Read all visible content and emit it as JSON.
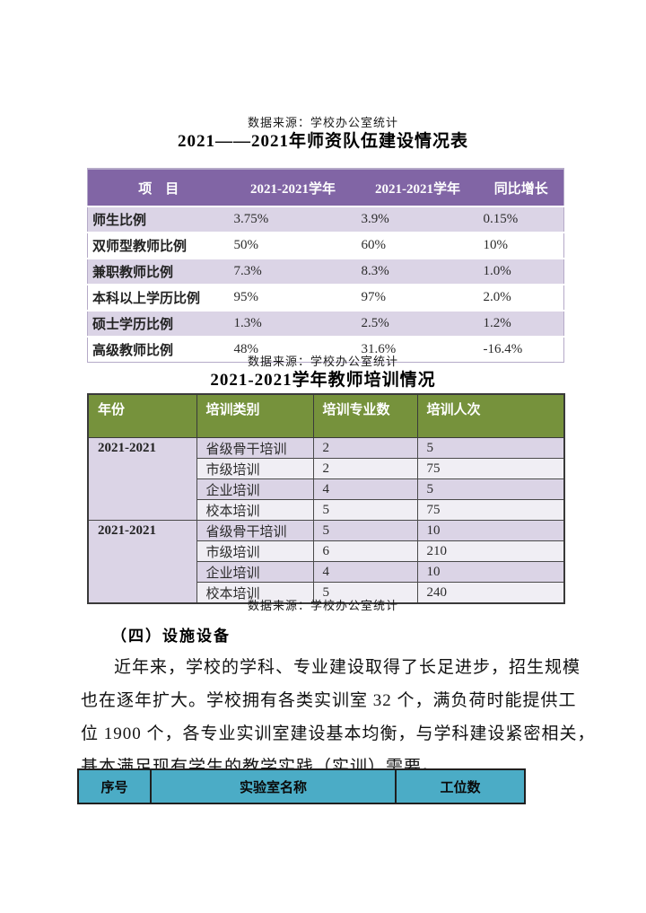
{
  "captions": {
    "source": "数据来源：学校办公室统计"
  },
  "colors": {
    "purple_header": "#8165a5",
    "lavender_row": "#dbd4e6",
    "lavender_row_light": "#f0eef4",
    "lavender_border": "#b5aac8",
    "green_header": "#76923c",
    "teal_header": "#4bacc6"
  },
  "section_staff": {
    "title": "2021——2021年师资队伍建设情况表",
    "table": {
      "headers": [
        "项　目",
        "2021-2021学年",
        "2021-2021学年",
        "同比增长"
      ],
      "rows": [
        [
          "师生比例",
          "3.75%",
          "3.9%",
          "0.15%"
        ],
        [
          "双师型教师比例",
          "50%",
          "60%",
          "10%"
        ],
        [
          "兼职教师比例",
          "7.3%",
          "8.3%",
          "1.0%"
        ],
        [
          "本科以上学历比例",
          "95%",
          "97%",
          "2.0%"
        ],
        [
          "硕士学历比例",
          "1.3%",
          "2.5%",
          "1.2%"
        ],
        [
          "高级教师比例",
          "48%",
          "31.6%",
          "-16.4%"
        ]
      ]
    }
  },
  "section_training": {
    "title": "2021-2021学年教师培训情况",
    "table": {
      "headers": [
        "年份",
        "培训类别",
        "培训专业数",
        "培训人次"
      ],
      "groups": [
        {
          "year": "2021-2021",
          "rows": [
            [
              "省级骨干培训",
              "2",
              "5"
            ],
            [
              "市级培训",
              "2",
              "75"
            ],
            [
              "企业培训",
              "4",
              "5"
            ],
            [
              "校本培训",
              "5",
              "75"
            ]
          ]
        },
        {
          "year": "2021-2021",
          "rows": [
            [
              "省级骨干培训",
              "5",
              "10"
            ],
            [
              "市级培训",
              "6",
              "210"
            ],
            [
              "企业培训",
              "4",
              "10"
            ],
            [
              "校本培训",
              "5",
              "240"
            ]
          ]
        }
      ]
    }
  },
  "section_facilities": {
    "heading": "（四）设施设备",
    "paragraph_lines": [
      "近年来，学校的学科、专业建设取得了长足进步，招生规模",
      "也在逐年扩大。学校拥有各类实训室 32 个，满负荷时能提供工",
      "位 1900 个，各专业实训室建设基本均衡，与学科建设紧密相关，",
      "基本满足现有学生的教学实践（实训）需要。"
    ],
    "table": {
      "headers": [
        "序号",
        "实验室名称",
        "工位数"
      ]
    }
  }
}
